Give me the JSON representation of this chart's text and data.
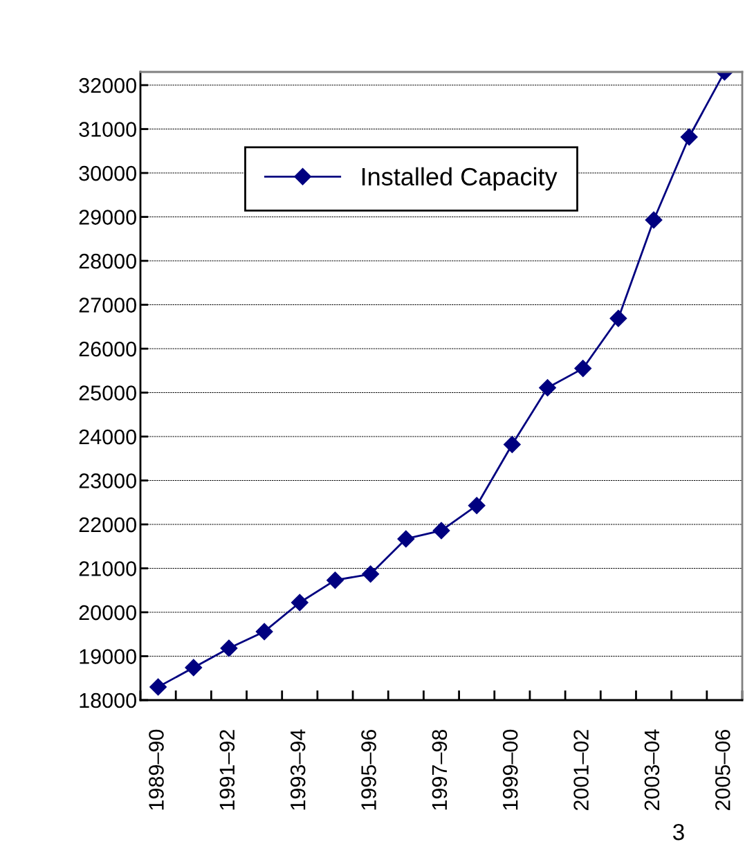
{
  "chart_data": {
    "type": "line",
    "categories": [
      "1989–90",
      null,
      "1991–92",
      null,
      "1993–94",
      null,
      "1995–96",
      null,
      "1997–98",
      null,
      "1999–00",
      null,
      "2001–02",
      null,
      "2003–04",
      null,
      "2005–06"
    ],
    "series": [
      {
        "name": "Installed Capacity",
        "color": "#000080",
        "values": [
          18300,
          18740,
          19180,
          19560,
          20220,
          20730,
          20870,
          21670,
          21860,
          22430,
          23820,
          25110,
          25550,
          26690,
          28930,
          30820,
          32300
        ]
      }
    ],
    "ylim": [
      18000,
      32300
    ],
    "yticks": [
      18000,
      19000,
      20000,
      21000,
      22000,
      23000,
      24000,
      25000,
      26000,
      27000,
      28000,
      29000,
      30000,
      31000,
      32000
    ],
    "grid": "y",
    "legend": "top",
    "marker": "diamond",
    "line_style": "solid",
    "annotations": [
      "3"
    ]
  }
}
